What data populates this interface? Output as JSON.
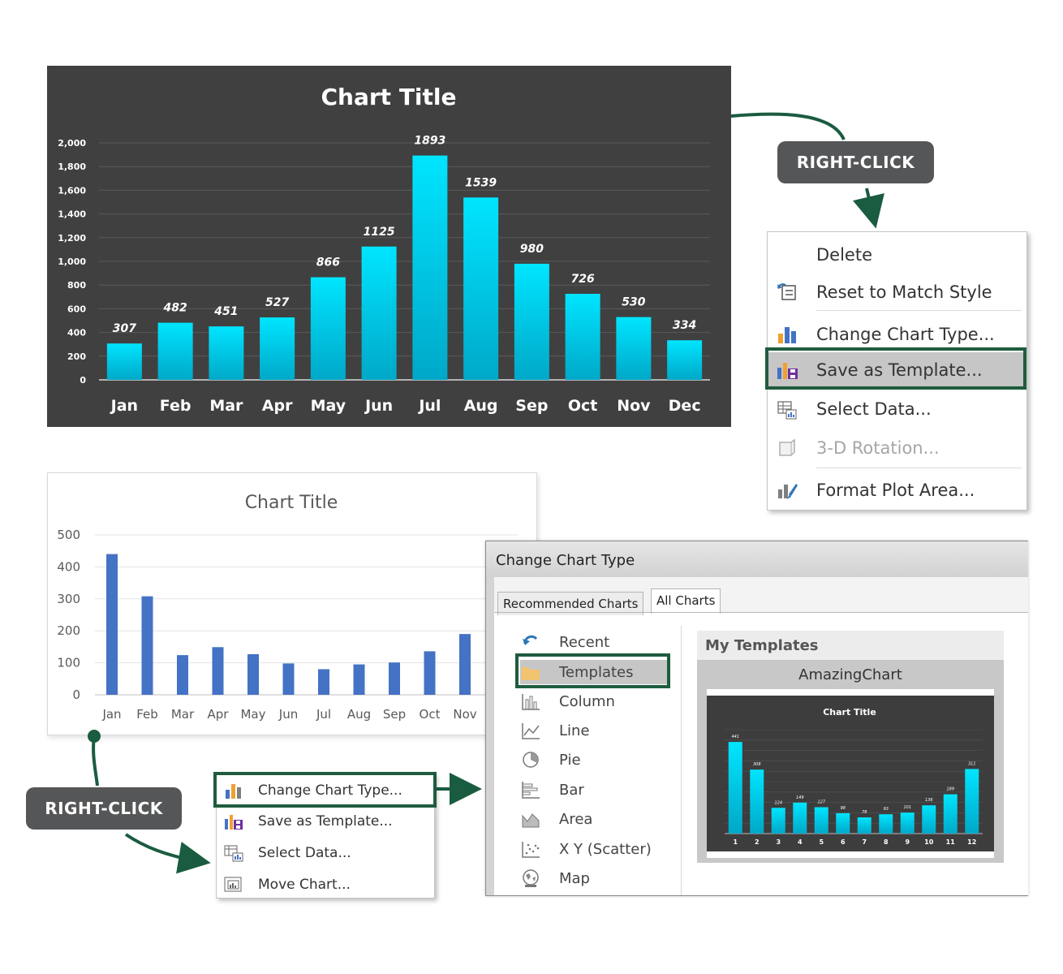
{
  "dark_chart": {
    "chart_data": {
      "type": "bar",
      "title": "Chart Title",
      "categories": [
        "Jan",
        "Feb",
        "Mar",
        "Apr",
        "May",
        "Jun",
        "Jul",
        "Aug",
        "Sep",
        "Oct",
        "Nov",
        "Dec"
      ],
      "values": [
        307,
        482,
        451,
        527,
        866,
        1125,
        1893,
        1539,
        980,
        726,
        530,
        334
      ],
      "y_ticks": [
        "0",
        "200",
        "400",
        "600",
        "800",
        "1,000",
        "1,200",
        "1,400",
        "1,600",
        "1,800",
        "2,000"
      ],
      "ylim": [
        0,
        2000
      ],
      "grid": true,
      "bar_color": "#00e5ff",
      "bar_color_bottom": "#00a8c8",
      "background": "#404040"
    }
  },
  "light_chart": {
    "chart_data": {
      "type": "bar",
      "title": "Chart Title",
      "categories": [
        "Jan",
        "Feb",
        "Mar",
        "Apr",
        "May",
        "Jun",
        "Jul",
        "Aug",
        "Sep",
        "Oct",
        "Nov"
      ],
      "values": [
        440,
        308,
        124,
        149,
        127,
        98,
        80,
        95,
        101,
        136,
        190
      ],
      "y_ticks": [
        "0",
        "100",
        "200",
        "300",
        "400",
        "500"
      ],
      "ylim": [
        0,
        500
      ],
      "grid": true,
      "bar_color": "#4472c4"
    }
  },
  "callouts": {
    "top": "RIGHT-CLICK",
    "bottom": "RIGHT-CLICK"
  },
  "menu_top": {
    "items": [
      {
        "label": "Delete",
        "icon": "none",
        "disabled": false
      },
      {
        "label": "Reset to Match Style",
        "icon": "reset-style-icon",
        "disabled": false
      },
      {
        "label": "Change Chart Type...",
        "icon": "change-chart-type-icon",
        "disabled": false
      },
      {
        "label": "Save as Template...",
        "icon": "save-template-icon",
        "disabled": false
      },
      {
        "label": "Select Data...",
        "icon": "select-data-icon",
        "disabled": false
      },
      {
        "label": "3-D Rotation...",
        "icon": "rotation-3d-icon",
        "disabled": true
      },
      {
        "label": "Format Plot Area...",
        "icon": "format-plot-area-icon",
        "disabled": false
      }
    ]
  },
  "menu_bottom": {
    "items": [
      {
        "label": "Change Chart Type...",
        "icon": "change-chart-type-icon"
      },
      {
        "label": "Save as Template...",
        "icon": "save-template-icon"
      },
      {
        "label": "Select Data...",
        "icon": "select-data-icon"
      },
      {
        "label": "Move Chart...",
        "icon": "move-chart-icon"
      }
    ]
  },
  "dialog": {
    "title": "Change Chart Type",
    "tabs": [
      "Recommended Charts",
      "All Charts"
    ],
    "chart_types": [
      {
        "label": "Recent",
        "icon": "recent-icon"
      },
      {
        "label": "Templates",
        "icon": "folder-icon"
      },
      {
        "label": "Column",
        "icon": "column-chart-icon"
      },
      {
        "label": "Line",
        "icon": "line-chart-icon"
      },
      {
        "label": "Pie",
        "icon": "pie-chart-icon"
      },
      {
        "label": "Bar",
        "icon": "bar-chart-icon"
      },
      {
        "label": "Area",
        "icon": "area-chart-icon"
      },
      {
        "label": "X Y (Scatter)",
        "icon": "scatter-chart-icon"
      },
      {
        "label": "Map",
        "icon": "map-icon"
      }
    ],
    "templates_header": "My Templates",
    "template_name": "AmazingChart",
    "thumbnail": {
      "chart_data": {
        "type": "bar",
        "title": "Chart Title",
        "categories": [
          "1",
          "2",
          "3",
          "4",
          "5",
          "6",
          "7",
          "8",
          "9",
          "10",
          "11",
          "12"
        ],
        "values": [
          441,
          308,
          124,
          149,
          127,
          98,
          78,
          93,
          101,
          136,
          189,
          311
        ],
        "data_labels": [
          "441",
          "308",
          "124",
          "149",
          "127",
          "98",
          "78",
          "93",
          "101",
          "136",
          "189",
          "311"
        ],
        "ylim": [
          0,
          500
        ]
      }
    }
  },
  "colors": {
    "highlight_border": "#1f5c3f",
    "arrow": "#1a5c40"
  }
}
